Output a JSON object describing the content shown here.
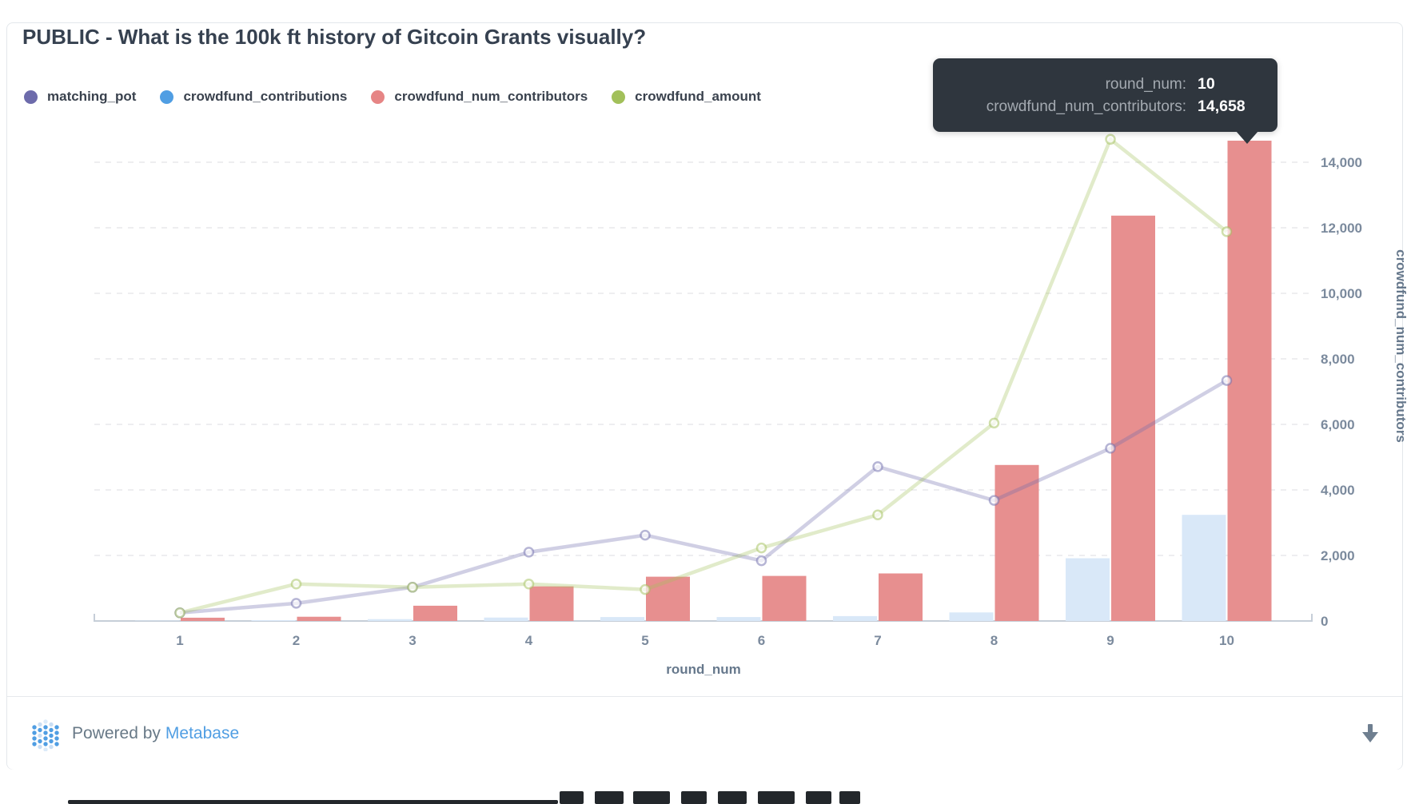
{
  "header": {
    "title": "PUBLIC - What is the 100k ft history of Gitcoin Grants visually?"
  },
  "tooltip": {
    "rows": [
      {
        "key": "round_num:",
        "value": "10"
      },
      {
        "key": "crowdfund_num_contributors:",
        "value": "14,658"
      }
    ],
    "background": "#2f363e"
  },
  "footer": {
    "powered_by": "Powered by",
    "brand": "Metabase",
    "brand_color": "#509EE3",
    "download_icon": "down-arrow"
  },
  "chart_data": {
    "type": "combo",
    "title": "PUBLIC - What is the 100k ft history of Gitcoin Grants visually?",
    "x": [
      "1",
      "2",
      "3",
      "4",
      "5",
      "6",
      "7",
      "8",
      "9",
      "10"
    ],
    "xlabel": "round_num",
    "ylabel_right": "crowdfund_num_contributors",
    "y_ticks": [
      "0",
      "2,000",
      "4,000",
      "6,000",
      "8,000",
      "10,000",
      "12,000",
      "14,000"
    ],
    "ylim": [
      0,
      15300
    ],
    "grid": "horizontal-dashed",
    "legend_position": "top-left",
    "series": [
      {
        "name": "matching_pot",
        "type": "line",
        "color": "#6d6bab",
        "line_stroke": "rgba(109,107,171,0.32)",
        "marker_stroke": "rgba(109,107,171,0.5)",
        "values": [
          250,
          540,
          1030,
          2100,
          2620,
          1840,
          4710,
          3680,
          5270,
          7340
        ]
      },
      {
        "name": "crowdfund_contributions",
        "type": "bar",
        "side": "left",
        "color": "#509EE3",
        "bar_fill": "#d9e8f8",
        "values": [
          10,
          25,
          55,
          105,
          120,
          120,
          150,
          260,
          1915,
          3240
        ]
      },
      {
        "name": "crowdfund_num_contributors",
        "type": "bar",
        "side": "right",
        "color": "#e68585",
        "bar_fill": "#e78f8f",
        "values": [
          100,
          130,
          465,
          1055,
          1350,
          1375,
          1450,
          4760,
          12370,
          14658
        ]
      },
      {
        "name": "crowdfund_amount",
        "type": "line",
        "color": "#a2c05a",
        "line_stroke": "rgba(162,192,90,0.32)",
        "marker_stroke": "rgba(162,192,90,0.5)",
        "values": [
          250,
          1130,
          1030,
          1130,
          960,
          2230,
          3240,
          6040,
          14700,
          11880
        ]
      }
    ]
  }
}
